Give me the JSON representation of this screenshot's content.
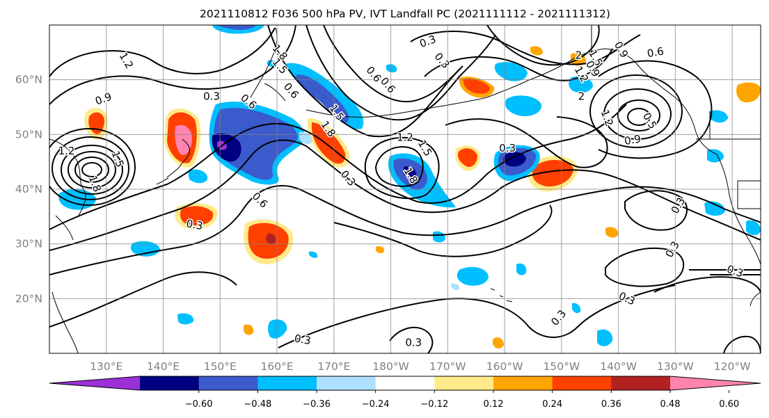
{
  "title": "2021110812 F036 500 hPa PV, IVT Landfall PC (2021111112 - 2021111312)",
  "map": {
    "lon_min": 120,
    "lon_max": 245,
    "lat_min": 10,
    "lat_max": 70,
    "lon_ticks": [
      {
        "lon": 130,
        "label": "130°E"
      },
      {
        "lon": 140,
        "label": "140°E"
      },
      {
        "lon": 150,
        "label": "150°E"
      },
      {
        "lon": 160,
        "label": "160°E"
      },
      {
        "lon": 170,
        "label": "170°E"
      },
      {
        "lon": 180,
        "label": "180°W"
      },
      {
        "lon": 190,
        "label": "170°W"
      },
      {
        "lon": 200,
        "label": "160°W"
      },
      {
        "lon": 210,
        "label": "150°W"
      },
      {
        "lon": 220,
        "label": "140°W"
      },
      {
        "lon": 230,
        "label": "130°W"
      },
      {
        "lon": 240,
        "label": "120°W"
      }
    ],
    "lat_ticks": [
      {
        "lat": 20,
        "label": "20°N"
      },
      {
        "lat": 30,
        "label": "30°N"
      },
      {
        "lat": 40,
        "label": "40°N"
      },
      {
        "lat": 50,
        "label": "50°N"
      },
      {
        "lat": 60,
        "label": "60°N"
      }
    ],
    "grid": true
  },
  "colorbar": {
    "colors": [
      "#9b30d9",
      "#000080",
      "#3b5bcc",
      "#00bfff",
      "#aee0ff",
      "#ffffff",
      "#ffea8a",
      "#ffa500",
      "#ff4000",
      "#b22222",
      "#ff85b0"
    ],
    "tick_labels": [
      "−0.60",
      "−0.48",
      "−0.36",
      "−0.24",
      "−0.12",
      "0.12",
      "0.24",
      "0.36",
      "0.48",
      "0.60"
    ],
    "extend": "both"
  },
  "contour_labels": [
    {
      "text": "1.2",
      "lon": 133.5,
      "lat": 63.5,
      "rot": 60
    },
    {
      "text": "0.9",
      "lon": 129.5,
      "lat": 56.5,
      "rot": -20
    },
    {
      "text": "0.3",
      "lon": 148.5,
      "lat": 57,
      "rot": 0
    },
    {
      "text": "0.6",
      "lon": 155,
      "lat": 56,
      "rot": 40
    },
    {
      "text": "1.8",
      "lon": 160.5,
      "lat": 65,
      "rot": 50
    },
    {
      "text": "1.5",
      "lon": 160.5,
      "lat": 62.5,
      "rot": 50
    },
    {
      "text": "0.3",
      "lon": 186.5,
      "lat": 67,
      "rot": -20
    },
    {
      "text": "0.3",
      "lon": 189,
      "lat": 63.5,
      "rot": 50
    },
    {
      "text": "0.6",
      "lon": 177,
      "lat": 61,
      "rot": 50
    },
    {
      "text": "0.6",
      "lon": 179.5,
      "lat": 59,
      "rot": 50
    },
    {
      "text": "1.5",
      "lon": 170.5,
      "lat": 54,
      "rot": 55
    },
    {
      "text": "1.8",
      "lon": 169,
      "lat": 51,
      "rot": 55
    },
    {
      "text": "1.2",
      "lon": 182.5,
      "lat": 49.5,
      "rot": 0
    },
    {
      "text": "1.5",
      "lon": 186,
      "lat": 47.5,
      "rot": 60
    },
    {
      "text": "1.8",
      "lon": 183.5,
      "lat": 42.5,
      "rot": 60
    },
    {
      "text": "0.3",
      "lon": 172.5,
      "lat": 42,
      "rot": 50
    },
    {
      "text": "0.3",
      "lon": 200.5,
      "lat": 47.5,
      "rot": 0
    },
    {
      "text": "2",
      "lon": 213,
      "lat": 64.5,
      "rot": 0
    },
    {
      "text": "1.5",
      "lon": 216,
      "lat": 64,
      "rot": 60
    },
    {
      "text": "1.2",
      "lon": 213.5,
      "lat": 61,
      "rot": 60
    },
    {
      "text": "0.9",
      "lon": 215.5,
      "lat": 62,
      "rot": 60
    },
    {
      "text": "2",
      "lon": 213.5,
      "lat": 57,
      "rot": 0
    },
    {
      "text": "0.9",
      "lon": 220.5,
      "lat": 65.5,
      "rot": 60
    },
    {
      "text": "0.6",
      "lon": 226.5,
      "lat": 65,
      "rot": -10
    },
    {
      "text": "1.2",
      "lon": 218,
      "lat": 53,
      "rot": 70
    },
    {
      "text": "0.5",
      "lon": 225.5,
      "lat": 52.5,
      "rot": 60
    },
    {
      "text": "0.9",
      "lon": 222.5,
      "lat": 49,
      "rot": -10
    },
    {
      "text": "0.6",
      "lon": 157,
      "lat": 38,
      "rot": 45
    },
    {
      "text": "0.6",
      "lon": 162.5,
      "lat": 58,
      "rot": 50
    },
    {
      "text": "0.3",
      "lon": 145.5,
      "lat": 33.5,
      "rot": 10
    },
    {
      "text": "0.3",
      "lon": 230.5,
      "lat": 37,
      "rot": -60
    },
    {
      "text": "0.3",
      "lon": 229.5,
      "lat": 29,
      "rot": -60
    },
    {
      "text": "0.3",
      "lon": 240.5,
      "lat": 25,
      "rot": 20
    },
    {
      "text": "0.3",
      "lon": 221.5,
      "lat": 20,
      "rot": 25
    },
    {
      "text": "0.3",
      "lon": 209.5,
      "lat": 16.5,
      "rot": -50
    },
    {
      "text": "0.3",
      "lon": 164.5,
      "lat": 12.5,
      "rot": 10
    },
    {
      "text": "0.3",
      "lon": 184,
      "lat": 12,
      "rot": 0
    },
    {
      "text": "1.2",
      "lon": 123,
      "lat": 47,
      "rot": 0
    },
    {
      "text": "1.8",
      "lon": 128,
      "lat": 41,
      "rot": 70
    },
    {
      "text": "1.5",
      "lon": 132,
      "lat": 45.5,
      "rot": 70
    }
  ]
}
